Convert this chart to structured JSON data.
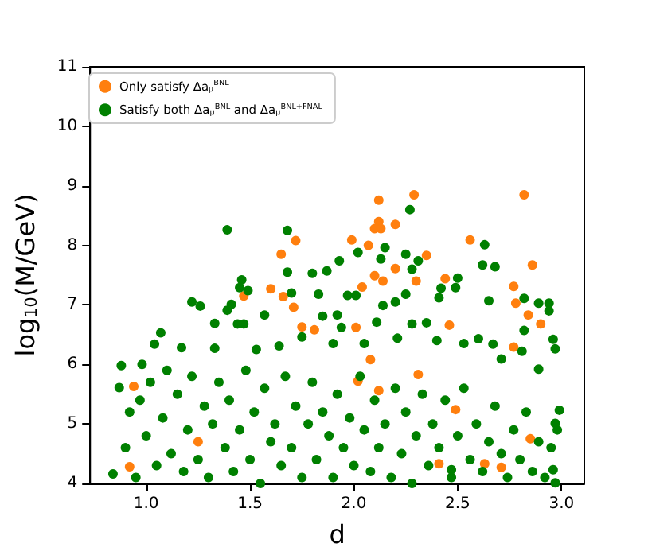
{
  "chart_data": {
    "type": "scatter",
    "xlabel": "d",
    "ylabel": "log$_{10}$(M/GeV)",
    "xlim": [
      0.73,
      3.11
    ],
    "ylim": [
      4,
      11
    ],
    "xticks": [
      {
        "value": 1,
        "label": "1.0"
      },
      {
        "value": 1.5,
        "label": "1.5"
      },
      {
        "value": 2,
        "label": "2.0"
      },
      {
        "value": 2.5,
        "label": "2.5"
      },
      {
        "value": 3,
        "label": "3.0"
      }
    ],
    "yticks": [
      4,
      5,
      6,
      7,
      8,
      9,
      10,
      11
    ],
    "grid": false,
    "legend": "top left",
    "marker": "circle",
    "series": [
      {
        "name": "Only satisfy Δa$_{μ}$$^{BNL}$",
        "color": "#ff7f0e",
        "x": [
          2.82,
          2.29,
          2.12,
          2.12,
          2.13,
          2.1,
          2.2,
          1.99,
          1.72,
          2.07,
          1.65,
          2.56,
          2.35,
          2.1,
          2.2,
          2.14,
          2.3,
          2.86,
          2.44,
          2.77,
          2.78,
          1.6,
          1.47,
          2.04,
          1.71,
          1.66,
          2.84,
          2.9,
          2.46,
          2.01,
          1.75,
          1.81,
          2.77,
          2.08,
          2.02,
          2.31,
          2.49,
          0.94,
          1.25,
          0.92,
          2.12,
          2.63,
          2.71,
          2.41,
          2.85
        ],
        "values": [
          8.85,
          8.85,
          8.76,
          8.4,
          8.28,
          8.28,
          8.35,
          8.09,
          8.08,
          8.0,
          7.85,
          8.09,
          7.83,
          7.49,
          7.61,
          7.4,
          7.4,
          7.67,
          7.44,
          7.31,
          7.03,
          7.27,
          7.15,
          7.3,
          6.96,
          7.14,
          6.83,
          6.68,
          6.66,
          6.62,
          6.63,
          6.58,
          6.29,
          6.08,
          5.72,
          5.83,
          5.24,
          5.63,
          4.7,
          4.28,
          5.56,
          4.33,
          4.27,
          4.33,
          4.75
        ]
      },
      {
        "name": "Satisfy both Δa$_{μ}$$^{BNL}$ and Δa$_{μ}$$^{BNL+FNAL}$",
        "color": "#008000",
        "x": [
          1.39,
          1.68,
          2.27,
          2.63,
          2.15,
          2.02,
          2.25,
          2.13,
          2.62,
          2.68,
          1.68,
          1.93,
          1.8,
          1.87,
          2.28,
          2.31,
          1.46,
          1.45,
          1.49,
          1.22,
          1.26,
          1.41,
          1.39,
          1.7,
          1.83,
          1.97,
          2.01,
          2.14,
          2.2,
          2.25,
          2.41,
          2.5,
          2.49,
          2.42,
          2.65,
          2.82,
          2.89,
          2.94,
          2.94,
          1.33,
          1.44,
          1.47,
          1.57,
          1.85,
          1.92,
          1.94,
          2.11,
          2.28,
          2.35,
          2.6,
          2.67,
          2.96,
          2.97,
          2.82,
          2.81,
          1.07,
          1.04,
          0.88,
          0.87,
          0.98,
          1.17,
          1.33,
          1.53,
          1.64,
          1.75,
          1.9,
          2.05,
          2.21,
          2.4,
          2.53,
          2.71,
          2.89,
          2.99,
          2.97,
          2.96,
          2.97,
          2.47,
          0.84,
          0.9,
          0.92,
          0.95,
          0.97,
          1.0,
          1.02,
          1.05,
          1.08,
          1.1,
          1.12,
          1.15,
          1.18,
          1.2,
          1.22,
          1.25,
          1.28,
          1.3,
          1.32,
          1.35,
          1.38,
          1.4,
          1.42,
          1.45,
          1.48,
          1.5,
          1.52,
          1.55,
          1.57,
          1.6,
          1.62,
          1.65,
          1.67,
          1.7,
          1.72,
          1.75,
          1.78,
          1.8,
          1.82,
          1.85,
          1.88,
          1.9,
          1.92,
          1.95,
          1.98,
          2.0,
          2.03,
          2.05,
          2.08,
          2.1,
          2.12,
          2.15,
          2.18,
          2.2,
          2.23,
          2.25,
          2.28,
          2.3,
          2.33,
          2.36,
          2.38,
          2.41,
          2.44,
          2.47,
          2.5,
          2.53,
          2.56,
          2.59,
          2.62,
          2.65,
          2.68,
          2.71,
          2.74,
          2.77,
          2.8,
          2.83,
          2.86,
          2.89,
          2.92,
          2.95,
          2.98
        ],
        "values": [
          8.26,
          8.25,
          8.6,
          8.01,
          7.96,
          7.88,
          7.85,
          7.77,
          7.67,
          7.64,
          7.55,
          7.74,
          7.53,
          7.57,
          7.6,
          7.74,
          7.42,
          7.29,
          7.24,
          7.05,
          6.98,
          7.01,
          6.91,
          7.2,
          7.18,
          7.16,
          7.16,
          6.99,
          7.05,
          7.18,
          7.12,
          7.45,
          7.29,
          7.28,
          7.07,
          7.11,
          7.03,
          7.03,
          6.9,
          6.69,
          6.68,
          6.68,
          6.83,
          6.81,
          6.83,
          6.62,
          6.71,
          6.68,
          6.7,
          6.43,
          6.34,
          6.42,
          6.26,
          6.57,
          6.22,
          6.53,
          6.34,
          5.98,
          5.61,
          6.0,
          6.28,
          6.27,
          6.25,
          6.31,
          6.46,
          6.35,
          6.35,
          6.44,
          6.4,
          6.35,
          6.09,
          5.92,
          5.23,
          5.01,
          4.23,
          4.01,
          4.23,
          4.16,
          4.6,
          5.2,
          4.1,
          5.4,
          4.8,
          5.7,
          4.3,
          5.1,
          5.9,
          4.5,
          5.5,
          4.2,
          4.9,
          5.8,
          4.4,
          5.3,
          4.1,
          5.0,
          5.7,
          4.6,
          5.4,
          4.2,
          4.9,
          5.9,
          4.4,
          5.2,
          4.0,
          5.6,
          4.7,
          5.0,
          4.3,
          5.8,
          4.6,
          5.3,
          4.1,
          5.0,
          5.7,
          4.4,
          5.2,
          4.8,
          4.1,
          5.5,
          4.6,
          5.1,
          4.3,
          5.8,
          4.9,
          4.2,
          5.4,
          4.6,
          5.0,
          4.1,
          5.6,
          4.5,
          5.2,
          4.0,
          4.8,
          5.5,
          4.3,
          5.0,
          4.6,
          5.4,
          4.1,
          4.8,
          5.6,
          4.4,
          5.0,
          4.2,
          4.7,
          5.3,
          4.5,
          4.1,
          4.9,
          4.4,
          5.2,
          4.2,
          4.7,
          4.1,
          4.6,
          4.9
        ]
      }
    ]
  }
}
